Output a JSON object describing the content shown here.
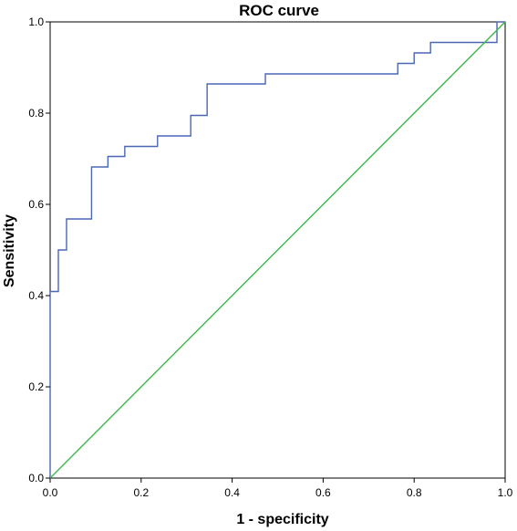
{
  "chart_data": {
    "type": "line",
    "title": "ROC curve",
    "xlabel": "1 - specificity",
    "ylabel": "Sensitivity",
    "xlim": [
      0.0,
      1.0
    ],
    "ylim": [
      0.0,
      1.0
    ],
    "x_ticks": [
      "0.0",
      "0.2",
      "0.4",
      "0.6",
      "0.8",
      "1.0"
    ],
    "y_ticks": [
      "0.0",
      "0.2",
      "0.4",
      "0.6",
      "0.8",
      "1.0"
    ],
    "grid": false,
    "legend": "none",
    "series": [
      {
        "color": "#4a67b6",
        "step": true,
        "x": [
          0.0,
          0.0,
          0.018,
          0.018,
          0.036,
          0.036,
          0.091,
          0.091,
          0.127,
          0.127,
          0.164,
          0.164,
          0.236,
          0.236,
          0.309,
          0.309,
          0.345,
          0.345,
          0.473,
          0.473,
          0.764,
          0.764,
          0.8,
          0.8,
          0.836,
          0.836,
          0.982,
          0.982,
          1.0
        ],
        "y": [
          0.0,
          0.409,
          0.409,
          0.5,
          0.5,
          0.568,
          0.568,
          0.682,
          0.682,
          0.705,
          0.705,
          0.727,
          0.727,
          0.75,
          0.75,
          0.795,
          0.795,
          0.864,
          0.864,
          0.886,
          0.886,
          0.909,
          0.909,
          0.932,
          0.932,
          0.955,
          0.955,
          1.0,
          1.0
        ]
      },
      {
        "color": "#3cb84a",
        "x": [
          0.0,
          1.0
        ],
        "y": [
          0.0,
          1.0
        ]
      }
    ]
  }
}
